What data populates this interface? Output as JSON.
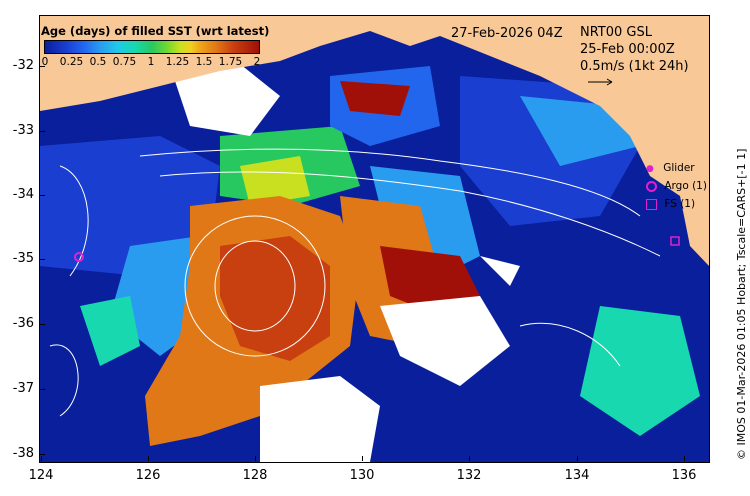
{
  "map": {
    "title": "Age (days) of filled SST (wrt latest)",
    "date_label": "27-Feb-2026 04Z",
    "product": "NRT00 GSL",
    "valid_time": "25-Feb 00:00Z",
    "velocity_scale": "0.5m/s (1kt 24h)",
    "side_label": "© IMOS 01-Mar-2026 01:05 Hobart; Tscale=CARS+[-1 1]",
    "x_ticks": [
      "124",
      "126",
      "128",
      "130",
      "132",
      "134",
      "136"
    ],
    "y_ticks": [
      "-32",
      "-33",
      "-34",
      "-35",
      "-36",
      "-37",
      "-38"
    ],
    "colorbar_ticks": [
      "0",
      "0.25",
      "0.5",
      "0.75",
      "1",
      "1.25",
      "1.5",
      "1.75",
      "2"
    ],
    "legend": {
      "glider": "Glider",
      "argo": "Argo (1)",
      "fs": "FS (1)"
    },
    "colors": {
      "land": "#f8c896",
      "ocean_fresh": "#0a1f9c",
      "stale": "#a01008",
      "missing": "#ffffff",
      "markers": "#e020d0"
    }
  }
}
